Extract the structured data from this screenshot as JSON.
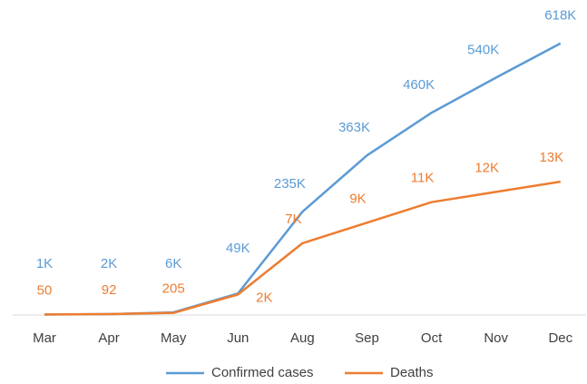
{
  "chart_data": {
    "type": "line",
    "categories": [
      "Mar",
      "Apr",
      "May",
      "Jun",
      "Aug",
      "Sep",
      "Oct",
      "Nov",
      "Dec"
    ],
    "series": [
      {
        "name": "Confirmed cases",
        "color": "#5b9bd5",
        "values": [
          1000,
          2000,
          6000,
          49000,
          235000,
          363000,
          460000,
          540000,
          618000
        ],
        "value_labels": [
          "1K",
          "2K",
          "6K",
          "49K",
          "235K",
          "363K",
          "460K",
          "540K",
          "618K"
        ]
      },
      {
        "name": "Deaths",
        "color": "#ed7d31",
        "axis": "y2",
        "values": [
          50,
          92,
          205,
          2000,
          7000,
          9000,
          11000,
          12000,
          13000
        ],
        "value_labels": [
          "50",
          "92",
          "205",
          "2K",
          "7K",
          "9K",
          "11K",
          "12K",
          "13K"
        ]
      }
    ],
    "ylim": [
      0,
      700000
    ],
    "y2lim": [
      0,
      30000
    ],
    "legend": "bottom"
  }
}
